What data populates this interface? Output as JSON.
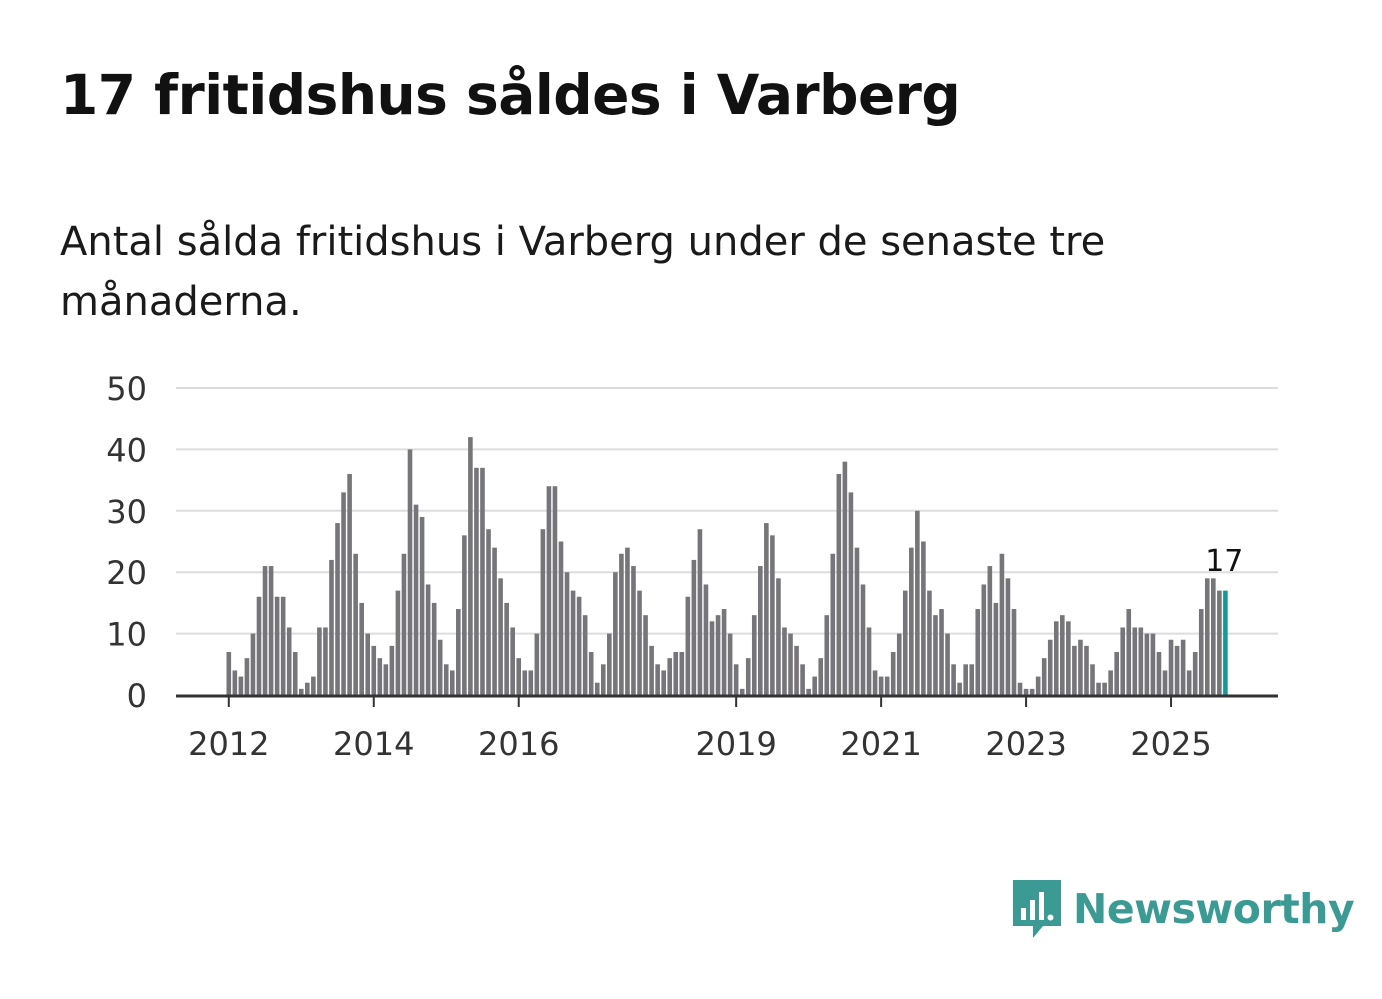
{
  "title": "17 fritidshus såldes i Varberg",
  "subtitle": "Antal sålda fritidshus i Varberg under de senaste tre månaderna.",
  "brand": {
    "name": "Newsworthy",
    "color": "#3c9a94"
  },
  "chart_data": {
    "type": "bar",
    "title": "17 fritidshus såldes i Varberg",
    "subtitle": "Antal sålda fritidshus i Varberg under de senaste tre månaderna.",
    "xlabel": "",
    "ylabel": "",
    "ylim": [
      0,
      50
    ],
    "yticks": [
      0,
      10,
      20,
      30,
      40,
      50
    ],
    "xticks": [
      "2012",
      "2014",
      "2016",
      "2019",
      "2021",
      "2023",
      "2025"
    ],
    "grid": true,
    "legend": "none",
    "bar_color": "#76757a",
    "highlight_color": "#1a9994",
    "gridline_color": "#dddddd",
    "start": "2012-01",
    "highlight_label": "17",
    "values": [
      7,
      4,
      3,
      6,
      10,
      16,
      21,
      21,
      16,
      16,
      11,
      7,
      1,
      2,
      3,
      11,
      11,
      22,
      28,
      33,
      36,
      23,
      15,
      10,
      8,
      6,
      5,
      8,
      17,
      23,
      40,
      31,
      29,
      18,
      15,
      9,
      5,
      4,
      14,
      26,
      42,
      37,
      37,
      27,
      24,
      19,
      15,
      11,
      6,
      4,
      4,
      10,
      27,
      34,
      34,
      25,
      20,
      17,
      16,
      13,
      7,
      2,
      5,
      10,
      20,
      23,
      24,
      21,
      17,
      13,
      8,
      5,
      4,
      6,
      7,
      7,
      16,
      22,
      27,
      18,
      12,
      13,
      14,
      10,
      5,
      1,
      6,
      13,
      21,
      28,
      26,
      19,
      11,
      10,
      8,
      5,
      1,
      3,
      6,
      13,
      23,
      36,
      38,
      33,
      24,
      18,
      11,
      4,
      3,
      3,
      7,
      10,
      17,
      24,
      30,
      25,
      17,
      13,
      14,
      10,
      5,
      2,
      5,
      5,
      14,
      18,
      21,
      15,
      23,
      19,
      14,
      2,
      1,
      1,
      3,
      6,
      9,
      12,
      13,
      12,
      8,
      9,
      8,
      5,
      2,
      2,
      4,
      7,
      11,
      14,
      11,
      11,
      10,
      10,
      7,
      4,
      9,
      8,
      9,
      4,
      7,
      14,
      19,
      19,
      17,
      17
    ]
  }
}
